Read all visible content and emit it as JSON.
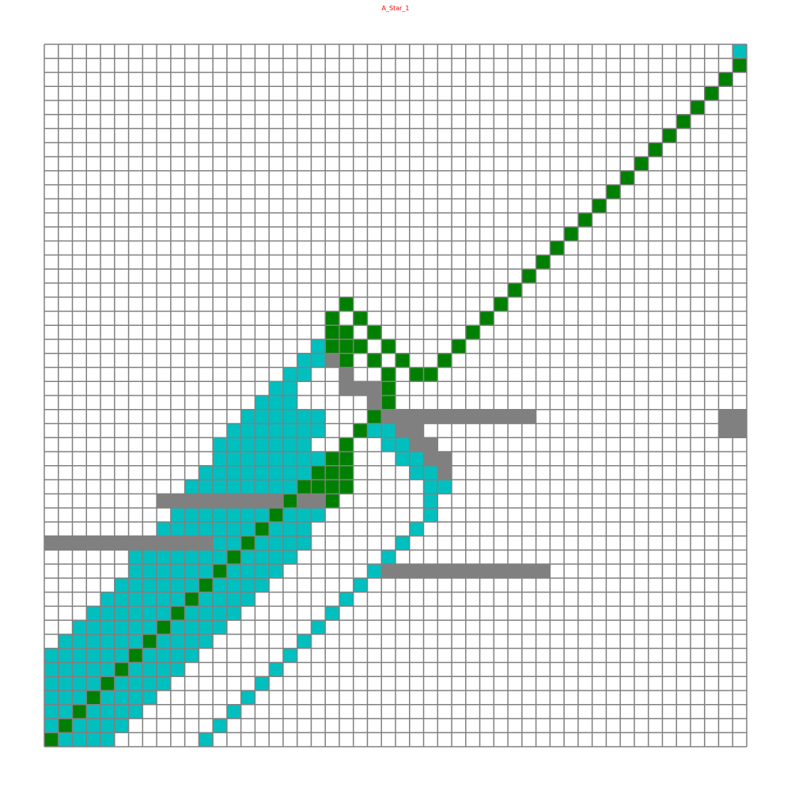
{
  "title": "A_Star_1",
  "colors": {
    "title": "#ff0000",
    "empty": "#ffffff",
    "gridline": "#808080",
    "obstacle": "#808080",
    "explored": "#00bfbf",
    "path": "#008000",
    "goal": "#00bfbf"
  },
  "grid": {
    "size": 50,
    "obstacles": [
      [
        21,
        23,
        0
      ],
      [
        22,
        24,
        1
      ],
      [
        22,
        25,
        2
      ],
      [
        23,
        25,
        2
      ],
      [
        24,
        25,
        2
      ],
      [
        24,
        26,
        1
      ],
      [
        25,
        26,
        1
      ],
      [
        25,
        27,
        0
      ],
      [
        26,
        27,
        0
      ],
      [
        27,
        27,
        0
      ],
      [
        28,
        27,
        0
      ],
      [
        29,
        27,
        0
      ],
      [
        30,
        27,
        0
      ],
      [
        31,
        27,
        0
      ],
      [
        32,
        27,
        0
      ],
      [
        33,
        27,
        0
      ],
      [
        34,
        27,
        0
      ],
      [
        35,
        27,
        0
      ],
      [
        26,
        28,
        1
      ],
      [
        27,
        28,
        1
      ],
      [
        27,
        29,
        1
      ],
      [
        28,
        29,
        1
      ],
      [
        28,
        30,
        1
      ],
      [
        29,
        30,
        1
      ],
      [
        29,
        31,
        1
      ],
      [
        49,
        27,
        0
      ],
      [
        50,
        27,
        0
      ],
      [
        49,
        28,
        0
      ],
      [
        50,
        28,
        0
      ]
    ],
    "walls": [
      [
        9,
        33,
        20,
        33
      ],
      [
        1,
        36,
        12,
        36
      ],
      [
        25,
        38,
        36,
        38
      ]
    ],
    "explored": [
      [
        21,
        21,
        22
      ],
      [
        20,
        22,
        21
      ],
      [
        19,
        23,
        20
      ],
      [
        18,
        24,
        19
      ],
      [
        17,
        25,
        18
      ],
      [
        16,
        26,
        18
      ],
      [
        15,
        27,
        20
      ],
      [
        14,
        28,
        20
      ],
      [
        13,
        29,
        19
      ],
      [
        13,
        30,
        20
      ],
      [
        12,
        31,
        20
      ],
      [
        11,
        32,
        20
      ],
      [
        10,
        33,
        21
      ],
      [
        10,
        34,
        20
      ],
      [
        9,
        35,
        19
      ],
      [
        8,
        36,
        19
      ],
      [
        7,
        37,
        18
      ],
      [
        7,
        38,
        17
      ],
      [
        6,
        39,
        16
      ],
      [
        5,
        40,
        15
      ],
      [
        4,
        41,
        14
      ],
      [
        3,
        42,
        13
      ],
      [
        2,
        43,
        12
      ],
      [
        1,
        44,
        11
      ],
      [
        1,
        45,
        10
      ],
      [
        1,
        46,
        9
      ],
      [
        1,
        47,
        8
      ],
      [
        1,
        48,
        7
      ],
      [
        1,
        49,
        6
      ],
      [
        1,
        50,
        5
      ]
    ],
    "explored_right": [
      [
        24,
        28,
        27
      ],
      [
        25,
        29,
        27
      ],
      [
        26,
        30,
        29
      ],
      [
        27,
        31,
        29
      ],
      [
        28,
        32,
        29
      ],
      [
        28,
        33,
        28
      ],
      [
        28,
        34,
        28
      ],
      [
        27,
        35,
        27
      ],
      [
        26,
        36,
        26
      ],
      [
        25,
        37,
        25
      ],
      [
        24,
        38,
        24
      ],
      [
        23,
        39,
        23
      ],
      [
        22,
        40,
        22
      ],
      [
        21,
        41,
        21
      ],
      [
        20,
        42,
        20
      ],
      [
        19,
        43,
        19
      ],
      [
        18,
        44,
        18
      ],
      [
        17,
        45,
        17
      ],
      [
        16,
        46,
        16
      ],
      [
        15,
        47,
        15
      ],
      [
        14,
        48,
        14
      ],
      [
        13,
        49,
        13
      ],
      [
        12,
        50,
        12
      ]
    ],
    "path": [
      [
        1,
        50
      ],
      [
        2,
        49
      ],
      [
        3,
        48
      ],
      [
        4,
        47
      ],
      [
        5,
        46
      ],
      [
        6,
        45
      ],
      [
        7,
        44
      ],
      [
        8,
        43
      ],
      [
        9,
        42
      ],
      [
        10,
        41
      ],
      [
        11,
        40
      ],
      [
        12,
        39
      ],
      [
        13,
        38
      ],
      [
        14,
        37
      ],
      [
        15,
        36
      ],
      [
        16,
        35
      ],
      [
        17,
        34
      ],
      [
        18,
        33
      ],
      [
        19,
        32
      ],
      [
        20,
        31
      ],
      [
        21,
        30
      ],
      [
        22,
        29
      ],
      [
        23,
        28
      ],
      [
        24,
        27
      ],
      [
        25,
        26
      ],
      [
        25,
        25
      ],
      [
        25,
        24
      ],
      [
        24,
        23
      ],
      [
        23,
        22
      ],
      [
        22,
        21
      ],
      [
        21,
        20
      ],
      [
        22,
        19
      ],
      [
        23,
        20
      ],
      [
        24,
        21
      ],
      [
        25,
        22
      ],
      [
        26,
        23
      ],
      [
        27,
        24
      ],
      [
        28,
        24
      ],
      [
        29,
        23
      ],
      [
        30,
        22
      ],
      [
        31,
        21
      ],
      [
        32,
        20
      ],
      [
        33,
        19
      ],
      [
        34,
        18
      ],
      [
        35,
        17
      ],
      [
        36,
        16
      ],
      [
        37,
        15
      ],
      [
        38,
        14
      ],
      [
        39,
        13
      ],
      [
        40,
        12
      ],
      [
        41,
        11
      ],
      [
        42,
        10
      ],
      [
        43,
        9
      ],
      [
        44,
        8
      ],
      [
        45,
        7
      ],
      [
        46,
        6
      ],
      [
        47,
        5
      ],
      [
        48,
        4
      ],
      [
        49,
        3
      ],
      [
        50,
        2
      ],
      [
        51,
        1
      ]
    ],
    "path_extra": [
      [
        21,
        21
      ],
      [
        21,
        22
      ],
      [
        22,
        23
      ],
      [
        22,
        22
      ],
      [
        21,
        32
      ],
      [
        22,
        31
      ],
      [
        22,
        30
      ],
      [
        21,
        31
      ],
      [
        21,
        33
      ],
      [
        22,
        32
      ],
      [
        20,
        32
      ]
    ],
    "goal": [
      51,
      1
    ]
  }
}
